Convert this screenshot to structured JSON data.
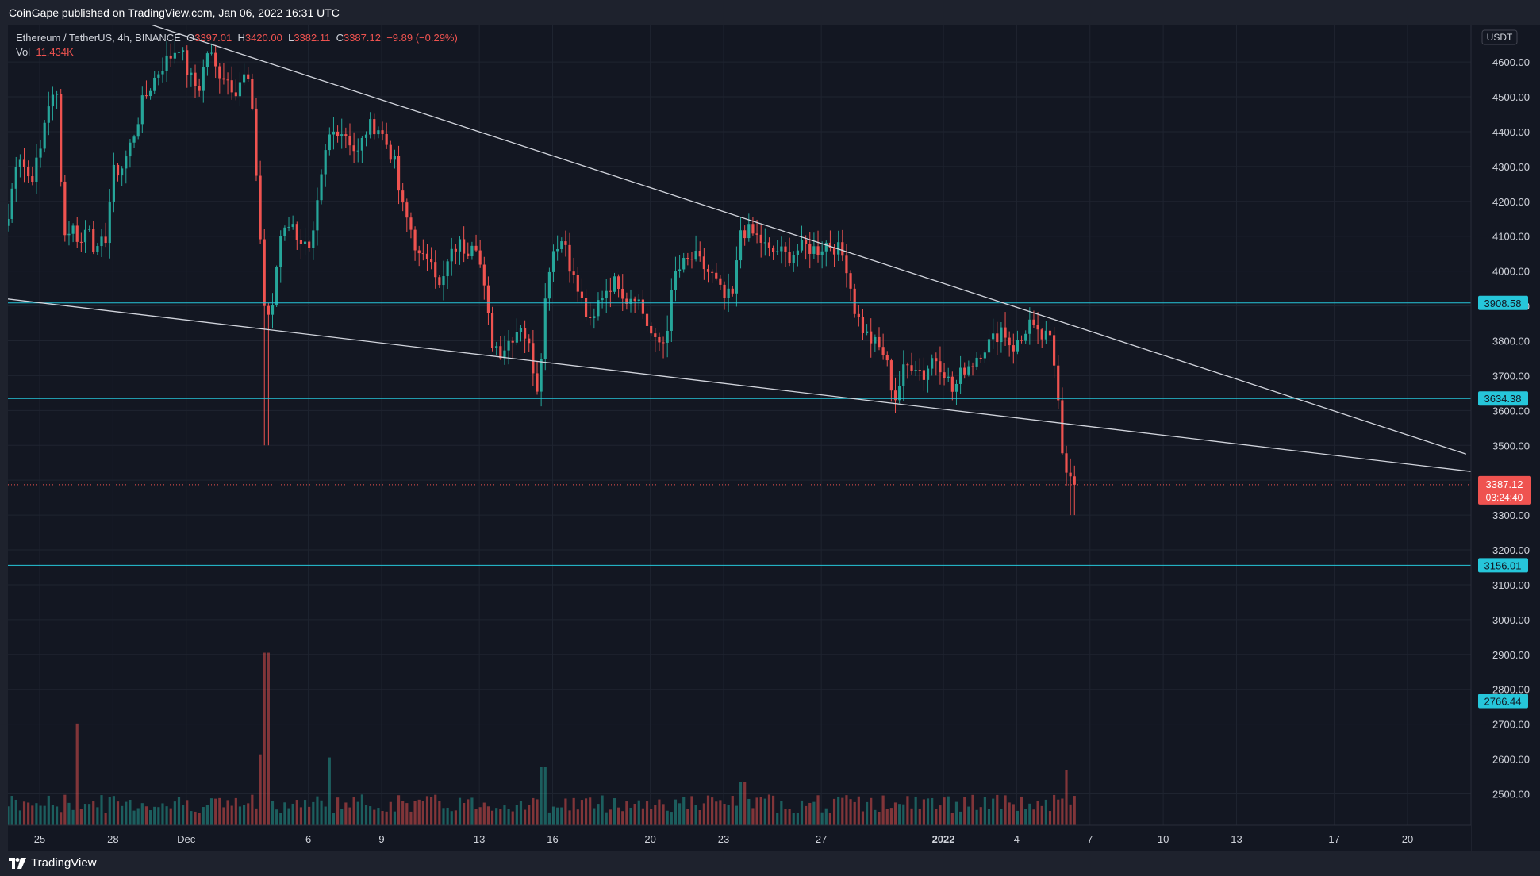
{
  "header": {
    "published": "CoinGape published on TradingView.com, Jan 06, 2022 16:31 UTC"
  },
  "footer": {
    "brand": "TradingView"
  },
  "legend": {
    "symbol": "Ethereum / TetherUS, 4h, BINANCE",
    "o_label": "O",
    "o_value": "3397.01",
    "h_label": "H",
    "h_value": "3420.00",
    "l_label": "L",
    "l_value": "3382.11",
    "c_label": "C",
    "c_value": "3387.12",
    "change": "−9.89 (−0.29%)",
    "vol_label": "Vol",
    "vol_value": "11.434K"
  },
  "chart_data": {
    "type": "candlestick",
    "currency_badge": "USDT",
    "y_ticks": [
      4600,
      4500,
      4400,
      4300,
      4200,
      4100,
      4000,
      3900,
      3800,
      3700,
      3600,
      3500,
      3400,
      3300,
      3200,
      3100,
      3000,
      2900,
      2800,
      2700,
      2600,
      2500
    ],
    "y_tick_labels": [
      "4600.00",
      "4500.00",
      "4400.00",
      "4300.00",
      "4200.00",
      "4100.00",
      "4000.00",
      "3900.00",
      "3800.00",
      "3700.00",
      "3600.00",
      "3500.00",
      "3400.00",
      "3300.00",
      "3200.00",
      "3100.00",
      "3000.00",
      "2900.00",
      "2800.00",
      "2700.00",
      "2600.00",
      "2500.00"
    ],
    "ylim": [
      2410,
      4705
    ],
    "x_range_days": [
      -7.3,
      52.6
    ],
    "x_ticks": [
      {
        "day": -6,
        "label": "25"
      },
      {
        "day": -3,
        "label": "28"
      },
      {
        "day": 0,
        "label": "Dec"
      },
      {
        "day": 5,
        "label": "6"
      },
      {
        "day": 8,
        "label": "9"
      },
      {
        "day": 12,
        "label": "13"
      },
      {
        "day": 15,
        "label": "16"
      },
      {
        "day": 19,
        "label": "20"
      },
      {
        "day": 22,
        "label": "23"
      },
      {
        "day": 26,
        "label": "27"
      },
      {
        "day": 31,
        "label": "2022"
      },
      {
        "day": 34,
        "label": "4"
      },
      {
        "day": 37,
        "label": "7"
      },
      {
        "day": 40,
        "label": "10"
      },
      {
        "day": 43,
        "label": "13"
      },
      {
        "day": 47,
        "label": "17"
      },
      {
        "day": 50,
        "label": "20"
      }
    ],
    "levels": [
      {
        "price": 3908.58,
        "label": "3908.58"
      },
      {
        "price": 3634.38,
        "label": "3634.38"
      },
      {
        "price": 3156.01,
        "label": "3156.01"
      },
      {
        "price": 2766.44,
        "label": "2766.44"
      }
    ],
    "trendlines": [
      {
        "name": "upper",
        "points": [
          [
            -2.0,
            4720
          ],
          [
            52.4,
            3475
          ]
        ]
      },
      {
        "name": "lower",
        "points": [
          [
            -7.3,
            3920
          ],
          [
            52.6,
            3425
          ]
        ]
      }
    ],
    "last_price": {
      "value": 3387.12,
      "label": "3387.12",
      "countdown": "03:24:40"
    },
    "price_anchors": [
      [
        -7.3,
        4150
      ],
      [
        -6.9,
        4350
      ],
      [
        -6.4,
        4260
      ],
      [
        -6.0,
        4330
      ],
      [
        -5.7,
        4480
      ],
      [
        -5.3,
        4500
      ],
      [
        -5.0,
        4100
      ],
      [
        -4.7,
        4130
      ],
      [
        -4.3,
        4080
      ],
      [
        -4.0,
        4150
      ],
      [
        -3.7,
        4040
      ],
      [
        -3.3,
        4100
      ],
      [
        -3.0,
        4280
      ],
      [
        -2.6,
        4300
      ],
      [
        -2.2,
        4380
      ],
      [
        -1.8,
        4480
      ],
      [
        -1.4,
        4540
      ],
      [
        -1.0,
        4590
      ],
      [
        -0.6,
        4620
      ],
      [
        -0.3,
        4650
      ],
      [
        0.1,
        4560
      ],
      [
        0.5,
        4520
      ],
      [
        0.9,
        4640
      ],
      [
        1.2,
        4580
      ],
      [
        1.6,
        4560
      ],
      [
        2.0,
        4520
      ],
      [
        2.3,
        4560
      ],
      [
        2.6,
        4540
      ],
      [
        2.9,
        4250
      ],
      [
        3.2,
        3900
      ],
      [
        3.5,
        3860
      ],
      [
        3.8,
        4090
      ],
      [
        4.1,
        4150
      ],
      [
        4.4,
        4120
      ],
      [
        4.8,
        4080
      ],
      [
        5.1,
        4040
      ],
      [
        5.4,
        4200
      ],
      [
        5.8,
        4380
      ],
      [
        6.2,
        4410
      ],
      [
        6.6,
        4390
      ],
      [
        7.0,
        4330
      ],
      [
        7.4,
        4410
      ],
      [
        7.8,
        4420
      ],
      [
        8.1,
        4380
      ],
      [
        8.5,
        4320
      ],
      [
        8.8,
        4190
      ],
      [
        9.2,
        4120
      ],
      [
        9.6,
        4020
      ],
      [
        10.0,
        4060
      ],
      [
        10.4,
        3940
      ],
      [
        10.7,
        4020
      ],
      [
        11.1,
        4080
      ],
      [
        11.5,
        4060
      ],
      [
        11.8,
        4110
      ],
      [
        12.1,
        3990
      ],
      [
        12.5,
        3800
      ],
      [
        12.9,
        3770
      ],
      [
        13.3,
        3810
      ],
      [
        13.7,
        3850
      ],
      [
        14.0,
        3790
      ],
      [
        14.4,
        3660
      ],
      [
        14.8,
        4000
      ],
      [
        15.1,
        4080
      ],
      [
        15.5,
        4090
      ],
      [
        15.8,
        3990
      ],
      [
        16.2,
        3910
      ],
      [
        16.6,
        3830
      ],
      [
        16.9,
        3920
      ],
      [
        17.3,
        3960
      ],
      [
        17.7,
        3970
      ],
      [
        18.0,
        3920
      ],
      [
        18.4,
        3940
      ],
      [
        18.8,
        3860
      ],
      [
        19.2,
        3790
      ],
      [
        19.6,
        3800
      ],
      [
        20.0,
        3990
      ],
      [
        20.4,
        4020
      ],
      [
        20.8,
        4040
      ],
      [
        21.2,
        4010
      ],
      [
        21.6,
        3980
      ],
      [
        22.0,
        3920
      ],
      [
        22.4,
        3930
      ],
      [
        22.7,
        4120
      ],
      [
        23.1,
        4110
      ],
      [
        23.5,
        4090
      ],
      [
        23.9,
        4050
      ],
      [
        24.2,
        4060
      ],
      [
        24.6,
        4040
      ],
      [
        25.0,
        4060
      ],
      [
        25.4,
        4070
      ],
      [
        25.8,
        4060
      ],
      [
        26.2,
        4080
      ],
      [
        26.6,
        4070
      ],
      [
        27.0,
        4030
      ],
      [
        27.4,
        3880
      ],
      [
        27.8,
        3820
      ],
      [
        28.2,
        3790
      ],
      [
        28.6,
        3760
      ],
      [
        29.0,
        3630
      ],
      [
        29.4,
        3720
      ],
      [
        29.8,
        3740
      ],
      [
        30.2,
        3700
      ],
      [
        30.6,
        3760
      ],
      [
        31.0,
        3720
      ],
      [
        31.4,
        3650
      ],
      [
        31.8,
        3720
      ],
      [
        32.2,
        3740
      ],
      [
        32.6,
        3780
      ],
      [
        33.0,
        3800
      ],
      [
        33.4,
        3840
      ],
      [
        33.8,
        3780
      ],
      [
        34.2,
        3800
      ],
      [
        34.5,
        3860
      ],
      [
        34.8,
        3810
      ],
      [
        35.1,
        3810
      ],
      [
        35.4,
        3800
      ],
      [
        35.7,
        3650
      ],
      [
        35.9,
        3460
      ],
      [
        36.1,
        3430
      ],
      [
        36.3,
        3370
      ],
      [
        36.5,
        3390
      ]
    ],
    "volume_ylim": [
      0,
      300
    ],
    "volume_ticks_note": "volume panel shares chart bottom"
  }
}
